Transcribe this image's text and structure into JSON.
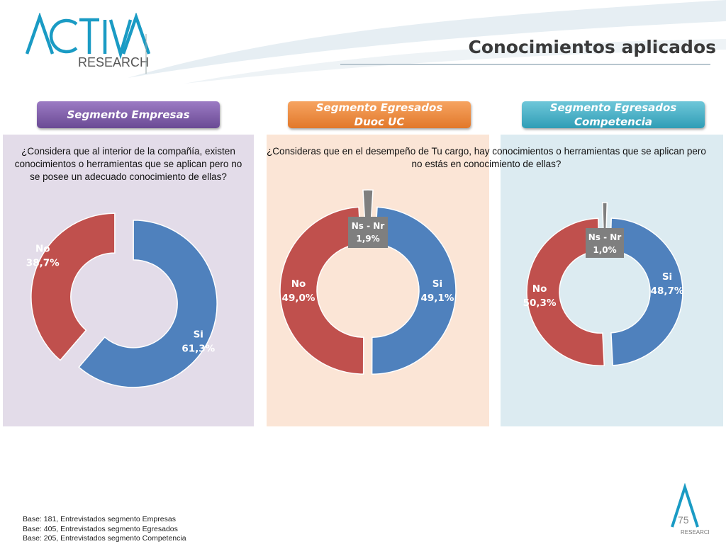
{
  "header": {
    "logo_text_top": "ACTIVA",
    "logo_text_bottom": "RESEARCH",
    "title": "Conocimientos aplicados"
  },
  "colors": {
    "si": "#4f81bd",
    "no": "#c0504d",
    "ns_nr": "#7f7f7f",
    "panel_empresas": "#e3dce9",
    "panel_duoc": "#fbe5d6",
    "panel_competencia": "#dcebf1"
  },
  "segments": [
    {
      "label_line1": "Segmento Empresas",
      "label_line2": ""
    },
    {
      "label_line1": "Segmento Egresados",
      "label_line2": "Duoc UC"
    },
    {
      "label_line1": "Segmento Egresados",
      "label_line2": "Competencia"
    }
  ],
  "questions": {
    "empresas": "¿Considera que al interior de la compañía, existen conocimientos o herramientas que se aplican pero no se posee un adecuado conocimiento de ellas?",
    "egresados": "¿Consideras que en el desempeño de Tu cargo, hay conocimientos o herramientas que se aplican pero no estás en conocimiento de ellas?"
  },
  "chart_data": [
    {
      "type": "pie",
      "segment": "Segmento Empresas",
      "categories": [
        "Si",
        "No"
      ],
      "values": [
        61.3,
        38.7
      ],
      "value_labels": [
        "61,3%",
        "38,7%"
      ]
    },
    {
      "type": "pie",
      "segment": "Segmento Egresados Duoc UC",
      "categories": [
        "Si",
        "No",
        "Ns - Nr"
      ],
      "values": [
        49.1,
        49.0,
        1.9
      ],
      "value_labels": [
        "49,1%",
        "49,0%",
        "1,9%"
      ]
    },
    {
      "type": "pie",
      "segment": "Segmento Egresados Competencia",
      "categories": [
        "Si",
        "No",
        "Ns - Nr"
      ],
      "values": [
        48.7,
        50.3,
        1.0
      ],
      "value_labels": [
        "48,7%",
        "50,3%",
        "1,0%"
      ]
    }
  ],
  "footer": {
    "base_notes": [
      "Base: 181, Entrevistados segmento Empresas",
      "Base: 405, Entrevistados segmento Egresados",
      "Base: 205, Entrevistados segmento Competencia"
    ],
    "page_number": "75",
    "logo_text": "RESEARCH"
  }
}
